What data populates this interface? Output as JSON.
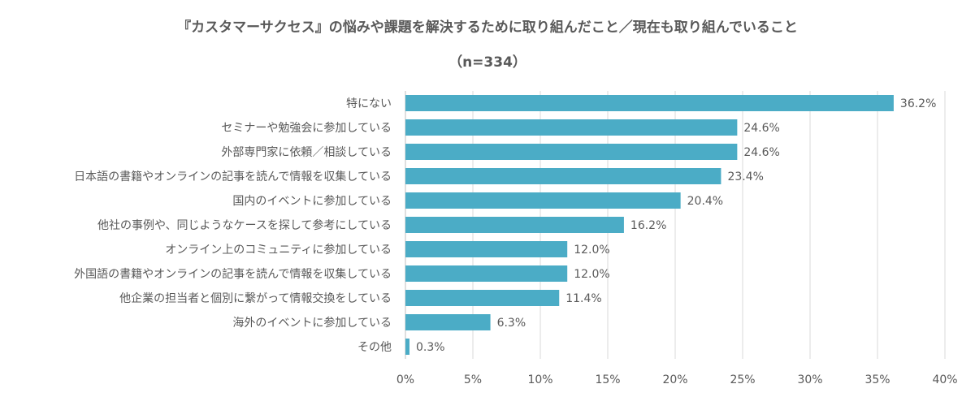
{
  "chart_data": {
    "type": "bar",
    "orientation": "horizontal",
    "title": "『カスタマーサクセス』の悩みや課題を解決するために取り組んだこと／現在も取り組んでいること",
    "subtitle": "（n=334）",
    "categories": [
      "特にない",
      "セミナーや勉強会に参加している",
      "外部専門家に依頼／相談している",
      "日本語の書籍やオンラインの記事を読んで情報を収集している",
      "国内のイベントに参加している",
      "他社の事例や、同じようなケースを探して参考にしている",
      "オンライン上のコミュニティに参加している",
      "外国語の書籍やオンラインの記事を読んで情報を収集している",
      "他企業の担当者と個別に繋がって情報交換をしている",
      "海外のイベントに参加している",
      "その他"
    ],
    "values": [
      36.2,
      24.6,
      24.6,
      23.4,
      20.4,
      16.2,
      12.0,
      12.0,
      11.4,
      6.3,
      0.3
    ],
    "value_labels": [
      "36.2%",
      "24.6%",
      "24.6%",
      "23.4%",
      "20.4%",
      "16.2%",
      "12.0%",
      "12.0%",
      "11.4%",
      "6.3%",
      "0.3%"
    ],
    "xlim": [
      0,
      40
    ],
    "xticks": [
      0,
      5,
      10,
      15,
      20,
      25,
      30,
      35,
      40
    ],
    "xtick_labels": [
      "0%",
      "5%",
      "10%",
      "15%",
      "20%",
      "25%",
      "30%",
      "35%",
      "40%"
    ],
    "grid": "vertical",
    "bar_color": "#4BACC6",
    "grid_color": "#D9D9D9",
    "text_color": "#595959"
  }
}
